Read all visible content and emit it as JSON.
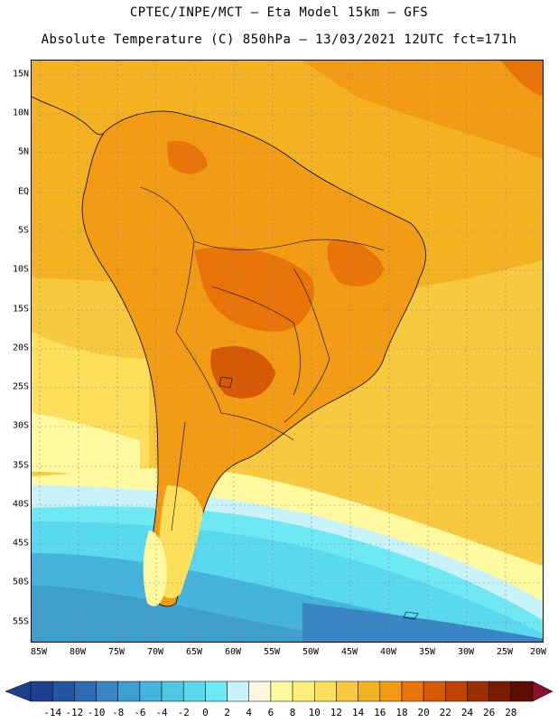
{
  "header": {
    "title_line1": "CPTEC/INPE/MCT –  Eta Model 15km – GFS",
    "title_line2": "Absolute Temperature (C) 850hPa – 13/03/2021 12UTC fct=171h"
  },
  "axes": {
    "lat_labels": [
      "15N",
      "10N",
      "5N",
      "EQ",
      "5S",
      "10S",
      "15S",
      "20S",
      "25S",
      "30S",
      "35S",
      "40S",
      "45S",
      "50S",
      "55S"
    ],
    "lon_labels": [
      "85W",
      "80W",
      "75W",
      "70W",
      "65W",
      "60W",
      "55W",
      "50W",
      "45W",
      "40W",
      "35W",
      "30W",
      "25W",
      "20W"
    ]
  },
  "colorbar": {
    "labels": [
      "-14",
      "-12",
      "-10",
      "-8",
      "-6",
      "-4",
      "-2",
      "0",
      "2",
      "4",
      "6",
      "8",
      "10",
      "12",
      "14",
      "16",
      "18",
      "20",
      "22",
      "24",
      "26",
      "28"
    ],
    "colors": [
      "#1f3f8f",
      "#2455a0",
      "#2d6cb3",
      "#3a86c4",
      "#3e9fcf",
      "#45b4dc",
      "#4fc8e6",
      "#5ad9ee",
      "#6ee9f3",
      "#c9f3fa",
      "#fff8dc",
      "#fffaa0",
      "#ffef7a",
      "#fcdf5a",
      "#f7c93e",
      "#f4b223",
      "#f29b14",
      "#e8740a",
      "#d65a06",
      "#bf4304",
      "#9c2e03",
      "#7a1c02",
      "#5c0f01"
    ]
  },
  "map_colors": {
    "t28": "#7a1c02",
    "t24": "#9c2e03",
    "t22": "#bf4304",
    "t20": "#d65a06",
    "t18": "#e8740a",
    "t16": "#f29b14",
    "t14": "#f4b223",
    "t12": "#f7c93e",
    "t10": "#fcdf5a",
    "t8": "#fffaa0",
    "t6": "#fff8dc",
    "t4": "#c9f3fa",
    "t2": "#6ee9f3",
    "t0": "#5ad9ee",
    "tm2": "#4fc8e6",
    "tm4": "#45b4dc",
    "tm6": "#3e9fcf",
    "tm8": "#3a86c4",
    "tm10": "#2d6cb3"
  }
}
